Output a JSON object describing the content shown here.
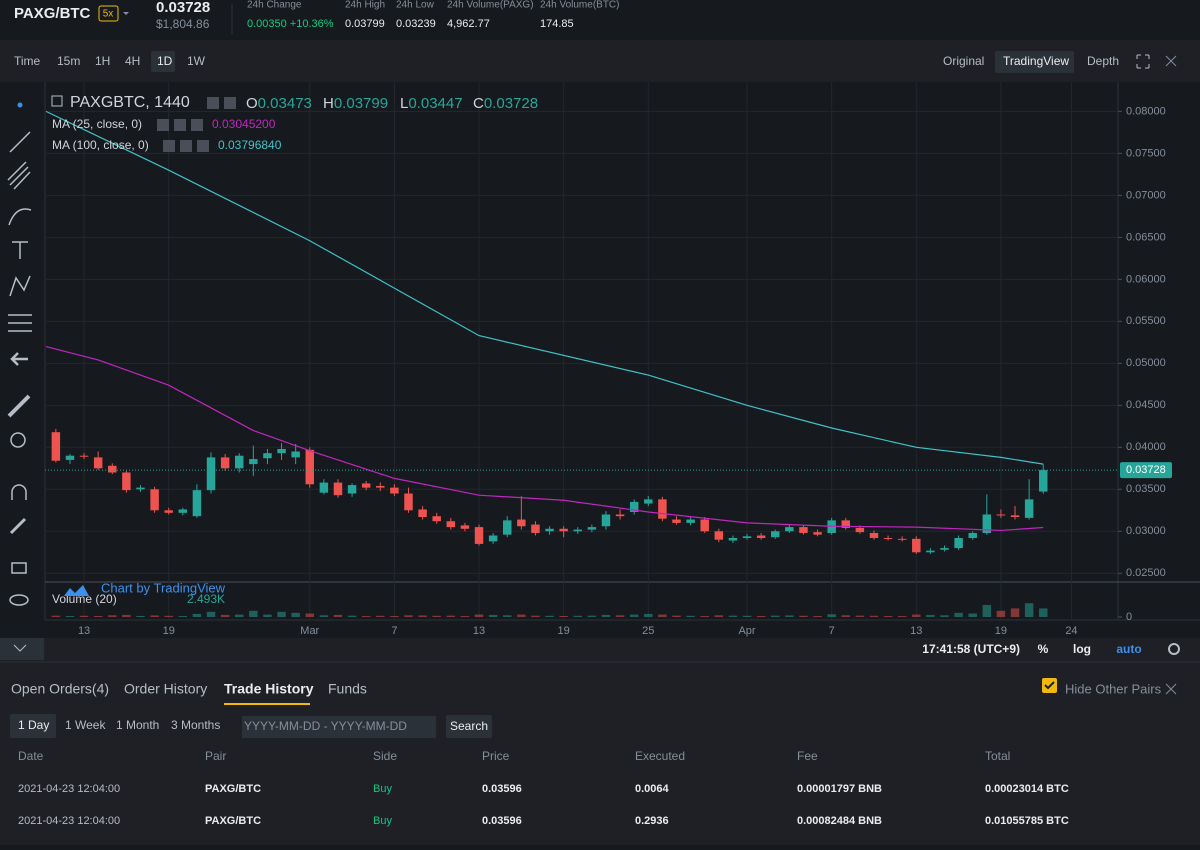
{
  "header": {
    "symbol": "PAXG/BTC",
    "leverage": "5x",
    "last_price": "0.03728",
    "last_price_usd": "$1,804.86",
    "stats": [
      {
        "label": "24h Change",
        "value": "0.00350 +10.36%"
      },
      {
        "label": "24h High",
        "value": "0.03799"
      },
      {
        "label": "24h Low",
        "value": "0.03239"
      },
      {
        "label": "24h Volume(PAXG)",
        "value": "4,962.77"
      },
      {
        "label": "24h Volume(BTC)",
        "value": "174.85"
      }
    ]
  },
  "toolbar": {
    "intervals": [
      "Time",
      "15m",
      "1H",
      "4H",
      "1D",
      "1W"
    ],
    "views": [
      "Original",
      "TradingView",
      "Depth"
    ]
  },
  "chart": {
    "type": "candlestick",
    "symbol": "PAXGBTC, 1440",
    "ohlc": [
      {
        "label": "O",
        "value": "0.03473"
      },
      {
        "label": "H",
        "value": "0.03799"
      },
      {
        "label": "L",
        "value": "0.03447"
      },
      {
        "label": "C",
        "value": "0.03728"
      }
    ],
    "up_color": "#26a69a",
    "down_color": "#ef5350",
    "candles": [
      [
        0.0418,
        0.0422,
        0.0382,
        0.0384
      ],
      [
        0.0385,
        0.0392,
        0.038,
        0.039
      ],
      [
        0.039,
        0.0393,
        0.0386,
        0.0389
      ],
      [
        0.0388,
        0.0395,
        0.0373,
        0.0375
      ],
      [
        0.0378,
        0.0381,
        0.0368,
        0.037
      ],
      [
        0.037,
        0.0372,
        0.0346,
        0.0349
      ],
      [
        0.035,
        0.0355,
        0.0347,
        0.0352
      ],
      [
        0.035,
        0.0353,
        0.0322,
        0.0325
      ],
      [
        0.0325,
        0.0328,
        0.032,
        0.0322
      ],
      [
        0.0322,
        0.0328,
        0.0319,
        0.0326
      ],
      [
        0.0318,
        0.0356,
        0.0316,
        0.0349
      ],
      [
        0.0349,
        0.0394,
        0.0345,
        0.0388
      ],
      [
        0.0388,
        0.0392,
        0.0372,
        0.0375
      ],
      [
        0.0375,
        0.0393,
        0.037,
        0.039
      ],
      [
        0.038,
        0.0402,
        0.0366,
        0.0386
      ],
      [
        0.0387,
        0.0398,
        0.038,
        0.0393
      ],
      [
        0.0393,
        0.0405,
        0.0385,
        0.0398
      ],
      [
        0.0388,
        0.0404,
        0.038,
        0.0395
      ],
      [
        0.0397,
        0.04,
        0.0352,
        0.0356
      ],
      [
        0.0346,
        0.0362,
        0.0344,
        0.0358
      ],
      [
        0.0358,
        0.0362,
        0.034,
        0.0343
      ],
      [
        0.0345,
        0.0357,
        0.0341,
        0.0355
      ],
      [
        0.0357,
        0.036,
        0.0349,
        0.0352
      ],
      [
        0.0354,
        0.0358,
        0.0348,
        0.0352
      ],
      [
        0.0352,
        0.0356,
        0.0342,
        0.0345
      ],
      [
        0.0345,
        0.0352,
        0.0322,
        0.0325
      ],
      [
        0.0326,
        0.033,
        0.0314,
        0.0317
      ],
      [
        0.0318,
        0.0322,
        0.0309,
        0.0312
      ],
      [
        0.0312,
        0.0316,
        0.0302,
        0.0305
      ],
      [
        0.0307,
        0.031,
        0.03,
        0.0303
      ],
      [
        0.0305,
        0.0308,
        0.0283,
        0.0285
      ],
      [
        0.0288,
        0.0298,
        0.0285,
        0.0295
      ],
      [
        0.0296,
        0.0318,
        0.0293,
        0.0313
      ],
      [
        0.0314,
        0.0342,
        0.0302,
        0.0306
      ],
      [
        0.0308,
        0.0312,
        0.0295,
        0.0298
      ],
      [
        0.03,
        0.0306,
        0.0296,
        0.0303
      ],
      [
        0.0303,
        0.0306,
        0.0293,
        0.03
      ],
      [
        0.03,
        0.0305,
        0.0297,
        0.0302
      ],
      [
        0.0302,
        0.0308,
        0.0299,
        0.0305
      ],
      [
        0.0306,
        0.0324,
        0.0302,
        0.032
      ],
      [
        0.032,
        0.0326,
        0.0314,
        0.0318
      ],
      [
        0.0323,
        0.0338,
        0.032,
        0.0335
      ],
      [
        0.0333,
        0.0342,
        0.033,
        0.0338
      ],
      [
        0.0338,
        0.0341,
        0.0312,
        0.0315
      ],
      [
        0.0314,
        0.0318,
        0.0308,
        0.031
      ],
      [
        0.031,
        0.0318,
        0.0307,
        0.0314
      ],
      [
        0.0314,
        0.0317,
        0.0298,
        0.03
      ],
      [
        0.03,
        0.0303,
        0.0287,
        0.029
      ],
      [
        0.0289,
        0.0295,
        0.0286,
        0.0292
      ],
      [
        0.0292,
        0.0297,
        0.029,
        0.0294
      ],
      [
        0.0295,
        0.0298,
        0.029,
        0.0292
      ],
      [
        0.0293,
        0.0302,
        0.0291,
        0.03
      ],
      [
        0.03,
        0.0308,
        0.0298,
        0.0305
      ],
      [
        0.0305,
        0.0308,
        0.0296,
        0.0298
      ],
      [
        0.0299,
        0.0302,
        0.0294,
        0.0296
      ],
      [
        0.0298,
        0.0316,
        0.0296,
        0.0313
      ],
      [
        0.0313,
        0.0316,
        0.0302,
        0.0304
      ],
      [
        0.0304,
        0.0307,
        0.0297,
        0.0299
      ],
      [
        0.0298,
        0.0301,
        0.029,
        0.0292
      ],
      [
        0.0292,
        0.0295,
        0.0289,
        0.0291
      ],
      [
        0.0291,
        0.0294,
        0.0288,
        0.029
      ],
      [
        0.0291,
        0.0294,
        0.0273,
        0.0275
      ],
      [
        0.0275,
        0.028,
        0.0273,
        0.0277
      ],
      [
        0.0278,
        0.0283,
        0.0276,
        0.028
      ],
      [
        0.028,
        0.0295,
        0.0278,
        0.0292
      ],
      [
        0.0292,
        0.03,
        0.029,
        0.0298
      ],
      [
        0.0298,
        0.0344,
        0.0296,
        0.032
      ],
      [
        0.032,
        0.0326,
        0.0316,
        0.0319
      ],
      [
        0.0319,
        0.033,
        0.0314,
        0.0317
      ],
      [
        0.0316,
        0.0362,
        0.0314,
        0.0338
      ],
      [
        0.03473,
        0.03799,
        0.03447,
        0.03728
      ]
    ],
    "ma": [
      {
        "name": "MA (25, close, 0)",
        "value_label": "0.03045200",
        "color": "#c026c0",
        "x": [
          -0.7,
          3,
          8,
          14,
          18,
          24,
          30,
          36,
          42,
          49,
          55,
          61,
          67,
          70
        ],
        "values": [
          0.052,
          0.0504,
          0.0474,
          0.042,
          0.0396,
          0.0363,
          0.0343,
          0.0337,
          0.0323,
          0.031,
          0.0306,
          0.0305,
          0.0301,
          0.03045
        ]
      },
      {
        "name": "MA (100, close, 0)",
        "value_label": "0.03796840",
        "color": "#3fc1c9",
        "x": [
          -0.7,
          8,
          18,
          30,
          42,
          49,
          55,
          61,
          67,
          70
        ],
        "values": [
          0.08,
          0.073,
          0.0646,
          0.0533,
          0.0486,
          0.045,
          0.0423,
          0.04,
          0.0388,
          0.038
        ]
      }
    ],
    "volume": {
      "name": "Volume (20)",
      "value_label": "2.493K",
      "ylim": [
        0,
        9000
      ],
      "yticks": [
        0
      ],
      "values": [
        400,
        300,
        350,
        300,
        500,
        600,
        300,
        450,
        350,
        300,
        900,
        1500,
        600,
        700,
        1800,
        700,
        1500,
        1200,
        1000,
        500,
        600,
        400,
        300,
        350,
        300,
        500,
        450,
        350,
        400,
        300,
        700,
        600,
        500,
        700,
        400,
        350,
        300,
        350,
        400,
        600,
        500,
        700,
        900,
        700,
        400,
        350,
        300,
        500,
        400,
        350,
        300,
        400,
        450,
        350,
        300,
        800,
        500,
        400,
        350,
        300,
        300,
        700,
        600,
        500,
        1200,
        1000,
        3500,
        1800,
        2500,
        4000,
        2493
      ]
    },
    "attribution": "Chart by TradingView",
    "xlim": [
      -0.77,
      75.3
    ],
    "xticks": [
      {
        "value": 2,
        "label": "13"
      },
      {
        "value": 8,
        "label": "19"
      },
      {
        "value": 18,
        "label": "Mar"
      },
      {
        "value": 24,
        "label": "7"
      },
      {
        "value": 30,
        "label": "13"
      },
      {
        "value": 36,
        "label": "19"
      },
      {
        "value": 42,
        "label": "25"
      },
      {
        "value": 49,
        "label": "Apr"
      },
      {
        "value": 55,
        "label": "7"
      },
      {
        "value": 61,
        "label": "13"
      },
      {
        "value": 67,
        "label": "19"
      },
      {
        "value": 72,
        "label": "24"
      }
    ],
    "ylim": [
      0.0242,
      0.0835
    ],
    "yticks": [
      {
        "value": 0.08,
        "label": "0.08000"
      },
      {
        "value": 0.075,
        "label": "0.07500"
      },
      {
        "value": 0.07,
        "label": "0.07000"
      },
      {
        "value": 0.065,
        "label": "0.06500"
      },
      {
        "value": 0.06,
        "label": "0.06000"
      },
      {
        "value": 0.055,
        "label": "0.05500"
      },
      {
        "value": 0.05,
        "label": "0.05000"
      },
      {
        "value": 0.045,
        "label": "0.04500"
      },
      {
        "value": 0.04,
        "label": "0.04000"
      },
      {
        "value": 0.035,
        "label": "0.03500"
      },
      {
        "value": 0.03,
        "label": "0.03000"
      },
      {
        "value": 0.025,
        "label": "0.02500"
      }
    ],
    "grid": true
  },
  "status_bar": {
    "time": "17:41:58 (UTC+9)",
    "options": [
      "%",
      "log",
      "auto"
    ]
  },
  "orders": {
    "tabs": [
      "Open Orders(4)",
      "Order History",
      "Trade History",
      "Funds"
    ],
    "hide_other_pairs": "Hide Other Pairs",
    "ranges": [
      "1 Day",
      "1 Week",
      "1 Month",
      "3 Months"
    ],
    "date_range": "YYYY-MM-DD - YYYY-MM-DD",
    "search": "Search",
    "table": {
      "columns": [
        "Date",
        "Pair",
        "Side",
        "Price",
        "Executed",
        "Fee",
        "Total"
      ],
      "rows": [
        [
          "2021-04-23 12:04:00",
          "PAXG/BTC",
          "Buy",
          "0.03596",
          "0.0064",
          "0.00001797 BNB",
          "0.00023014 BTC"
        ],
        [
          "2021-04-23 12:04:00",
          "PAXG/BTC",
          "Buy",
          "0.03596",
          "0.2936",
          "0.00082484 BNB",
          "0.01055785 BTC"
        ]
      ]
    }
  }
}
